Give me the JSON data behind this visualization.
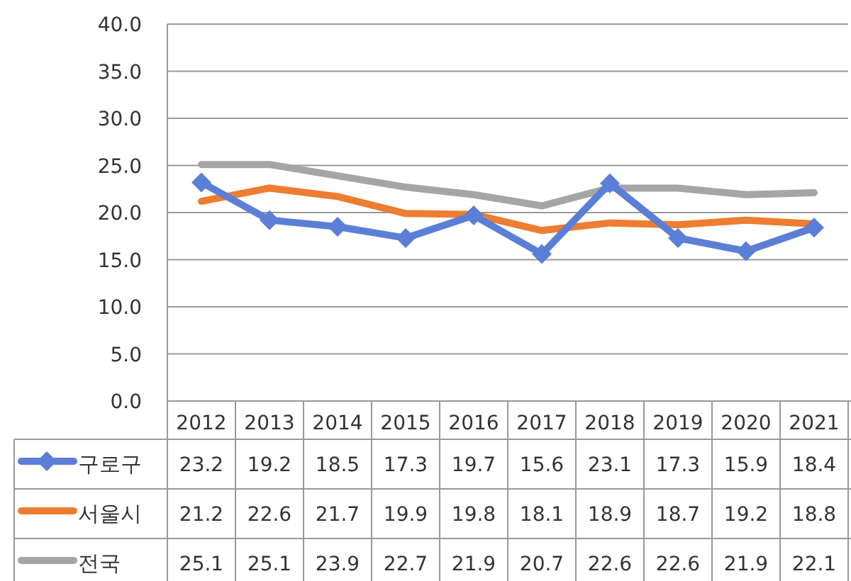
{
  "chart_data": {
    "type": "line",
    "categories": [
      "2012",
      "2013",
      "2014",
      "2015",
      "2016",
      "2017",
      "2018",
      "2019",
      "2020",
      "2021"
    ],
    "series": [
      {
        "name": "구로구",
        "color": "#5b7fd6",
        "marker": "diamond",
        "values": [
          23.2,
          19.2,
          18.5,
          17.3,
          19.7,
          15.6,
          23.1,
          17.3,
          15.9,
          18.4
        ]
      },
      {
        "name": "서울시",
        "color": "#ed7d31",
        "marker": "none",
        "values": [
          21.2,
          22.6,
          21.7,
          19.9,
          19.8,
          18.1,
          18.9,
          18.7,
          19.2,
          18.8
        ]
      },
      {
        "name": "전국",
        "color": "#a5a5a5",
        "marker": "none",
        "values": [
          25.1,
          25.1,
          23.9,
          22.7,
          21.9,
          20.7,
          22.6,
          22.6,
          21.9,
          22.1
        ]
      }
    ],
    "ylim": [
      0,
      40
    ],
    "yticks": [
      {
        "value": 0,
        "label": "0.0"
      },
      {
        "value": 5,
        "label": "5.0"
      },
      {
        "value": 10,
        "label": "10.0"
      },
      {
        "value": 15,
        "label": "15.0"
      },
      {
        "value": 20,
        "label": "20.0"
      },
      {
        "value": 25,
        "label": "25.0"
      },
      {
        "value": 30,
        "label": "30.0"
      },
      {
        "value": 35,
        "label": "35.0"
      },
      {
        "value": 40,
        "label": "40.0"
      }
    ],
    "grid": "y",
    "legend": "bottom",
    "data_labels": true
  }
}
